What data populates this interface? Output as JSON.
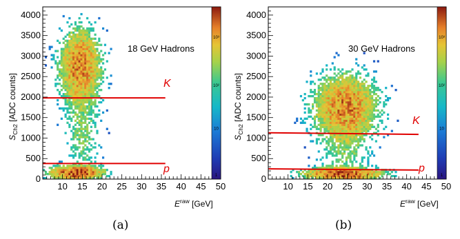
{
  "chart_data": [
    {
      "type": "heatmap",
      "caption": "(a)",
      "annotation": "18 GeV Hadrons",
      "xlabel_main": "E",
      "xlabel_sup": "raw",
      "xlabel_unit": " [GeV]",
      "ylabel_main": "S",
      "ylabel_sub": "Ch2",
      "ylabel_unit": " [ADC counts]",
      "xlim": [
        5,
        50
      ],
      "ylim": [
        0,
        4200
      ],
      "xticks": [
        10,
        15,
        20,
        25,
        30,
        35,
        40,
        45,
        50
      ],
      "yticks": [
        0,
        500,
        1000,
        1500,
        2000,
        2500,
        3000,
        3500,
        4000
      ],
      "zscale": "log",
      "zticks": [
        "10³",
        "10²",
        "10",
        "1"
      ],
      "cuts": [
        {
          "label": "K",
          "x": [
            5,
            36
          ],
          "y": [
            1980,
            1980
          ]
        },
        {
          "label": "p",
          "x": [
            5,
            36
          ],
          "y": [
            380,
            380
          ]
        }
      ],
      "clusters": [
        {
          "center": [
            14.5,
            2750
          ],
          "sigma": [
            2.7,
            480
          ],
          "peak": "high",
          "region": "hadron"
        },
        {
          "center": [
            13.5,
            160
          ],
          "sigma": [
            3.5,
            90
          ],
          "peak": "very-high",
          "region": "proton"
        },
        {
          "center": [
            15,
            1200
          ],
          "sigma": [
            2.5,
            700
          ],
          "peak": "low",
          "region": "kaon"
        }
      ]
    },
    {
      "type": "heatmap",
      "caption": "(b)",
      "annotation": "30 GeV Hadrons",
      "xlabel_main": "E",
      "xlabel_sup": "raw",
      "xlabel_unit": " [GeV]",
      "ylabel_main": "S",
      "ylabel_sub": "Ch2",
      "ylabel_unit": " [ADC counts]",
      "xlim": [
        5,
        50
      ],
      "ylim": [
        0,
        4200
      ],
      "xticks": [
        10,
        15,
        20,
        25,
        30,
        35,
        40,
        45,
        50
      ],
      "yticks": [
        0,
        500,
        1000,
        1500,
        2000,
        2500,
        3000,
        3500,
        4000
      ],
      "zscale": "log",
      "zticks": [
        "10³",
        "10²",
        "10",
        "1"
      ],
      "cuts": [
        {
          "label": "K",
          "x": [
            5,
            43
          ],
          "y": [
            1130,
            1090
          ]
        },
        {
          "label": "p",
          "x": [
            5,
            43
          ],
          "y": [
            250,
            220
          ]
        }
      ],
      "clusters": [
        {
          "center": [
            24.5,
            1750
          ],
          "sigma": [
            4.2,
            420
          ],
          "peak": "high",
          "region": "hadron"
        },
        {
          "center": [
            24,
            130
          ],
          "sigma": [
            5.0,
            80
          ],
          "peak": "very-high",
          "region": "proton"
        },
        {
          "center": [
            24.5,
            700
          ],
          "sigma": [
            3.5,
            350
          ],
          "peak": "low",
          "region": "kaon"
        }
      ]
    }
  ]
}
